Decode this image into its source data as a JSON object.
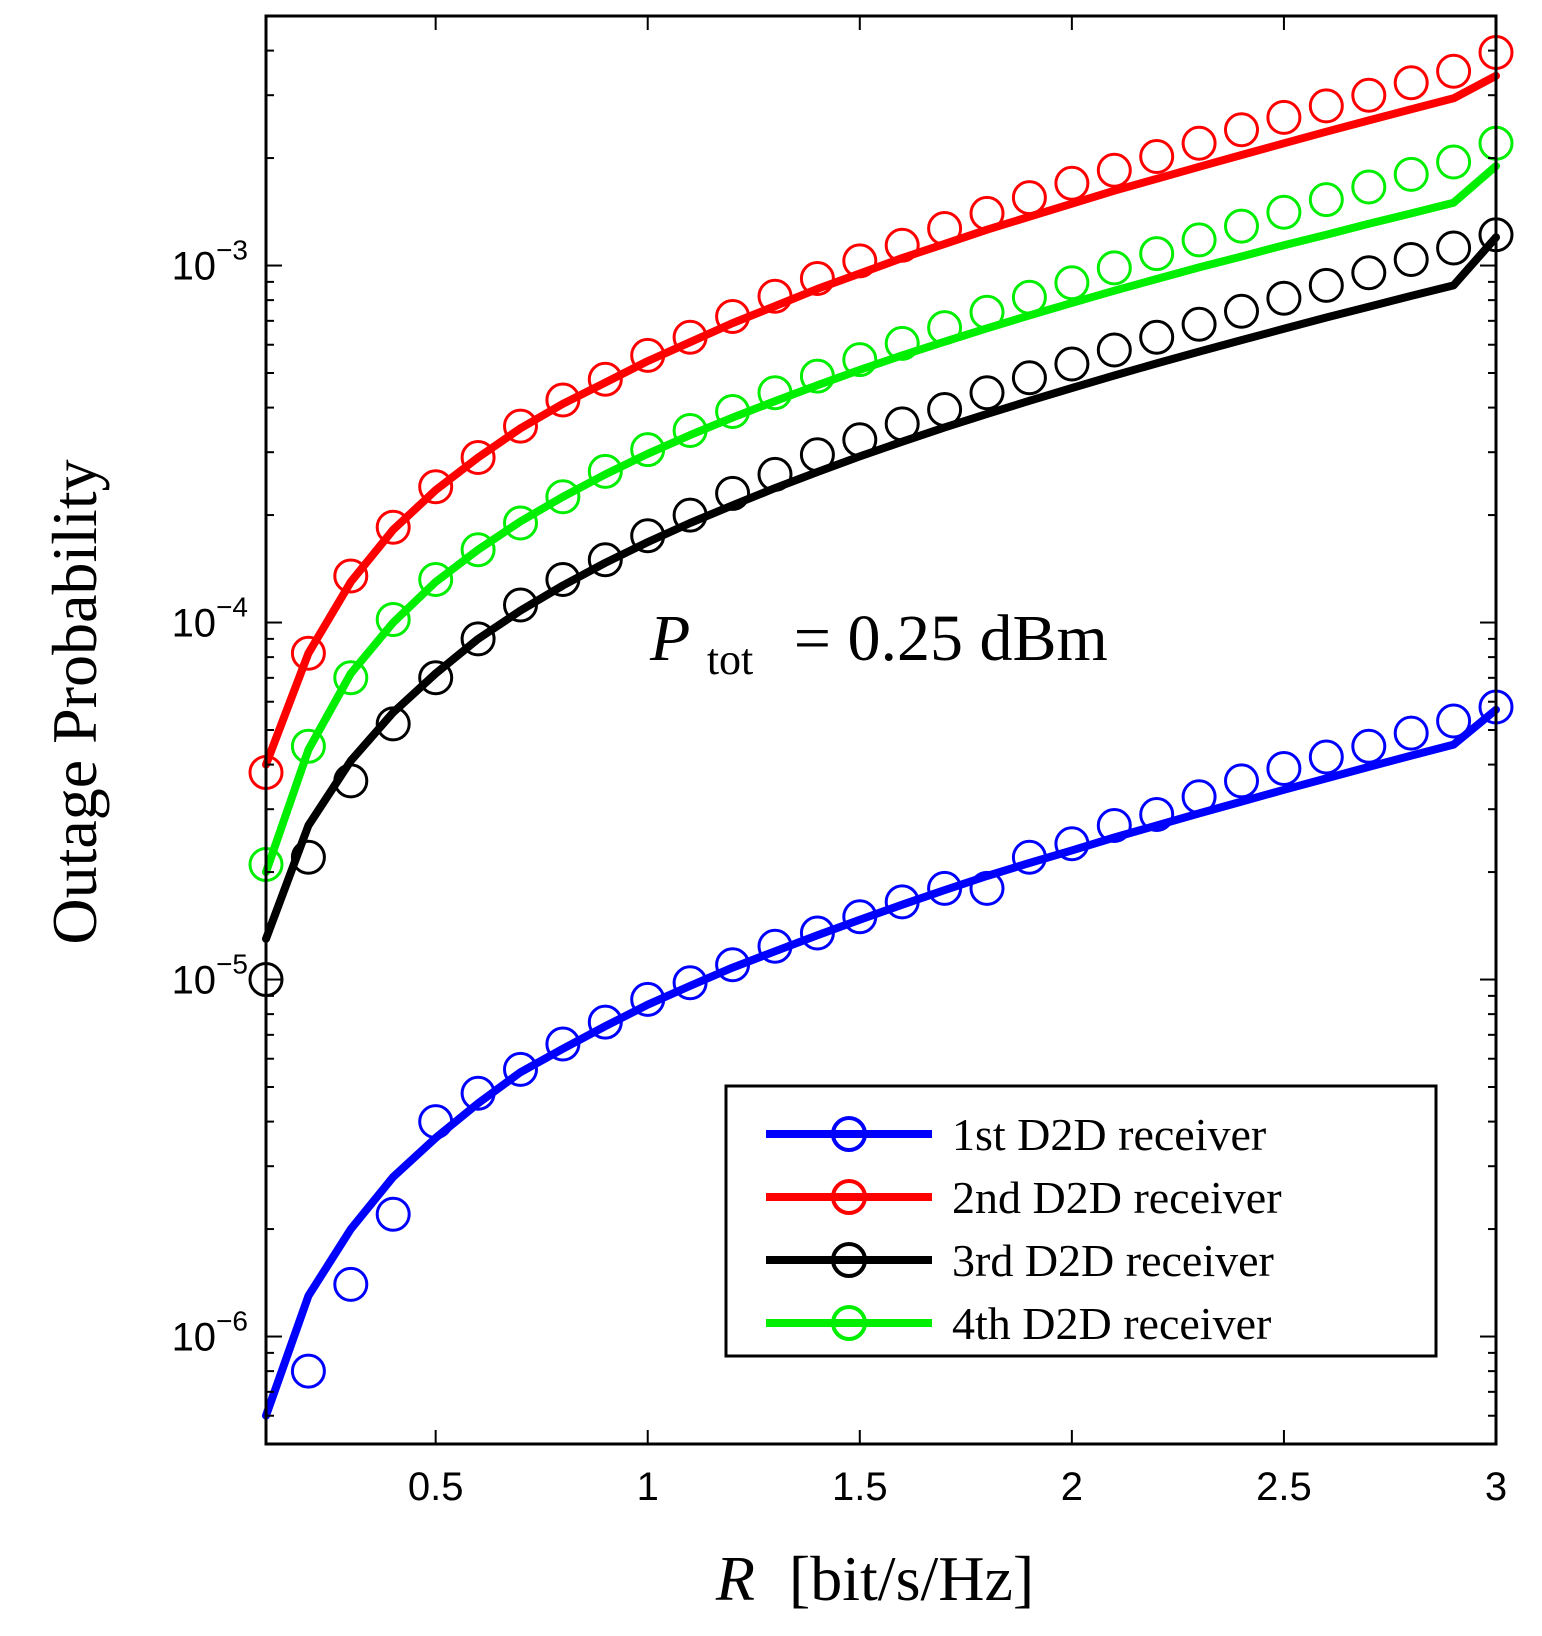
{
  "chart_data": {
    "type": "line",
    "title": "",
    "xlabel_var": "R",
    "xlabel_unit": "[bit/s/Hz]",
    "ylabel": "Outage Probability",
    "xlim": [
      0.1,
      3
    ],
    "ylim": [
      5e-07,
      0.005
    ],
    "yscale": "log",
    "grid": false,
    "legend_position": "bottom-right",
    "x_ticks": [
      0.5,
      1,
      1.5,
      2,
      2.5,
      3
    ],
    "x_tick_labels": [
      "0.5",
      "1",
      "1.5",
      "2",
      "2.5",
      "3"
    ],
    "y_ticks": [
      1e-06,
      1e-05,
      0.0001,
      0.001
    ],
    "y_tick_labels": [
      {
        "base": "10",
        "exp": "−6"
      },
      {
        "base": "10",
        "exp": "−5"
      },
      {
        "base": "10",
        "exp": "−4"
      },
      {
        "base": "10",
        "exp": "−3"
      }
    ],
    "annotation": {
      "var": "P",
      "sub": "tot",
      "rest": "= 0.25 dBm"
    },
    "x": [
      0.1,
      0.2,
      0.3,
      0.4,
      0.5,
      0.6,
      0.7,
      0.8,
      0.9,
      1.0,
      1.1,
      1.2,
      1.3,
      1.4,
      1.5,
      1.6,
      1.7,
      1.8,
      1.9,
      2.0,
      2.1,
      2.2,
      2.3,
      2.4,
      2.5,
      2.6,
      2.7,
      2.8,
      2.9,
      3.0
    ],
    "series": [
      {
        "name": "1st D2D receiver",
        "color": "#0000ff",
        "line": [
          6e-07,
          1.3e-06,
          2e-06,
          2.8e-06,
          3.6e-06,
          4.5e-06,
          5.5e-06,
          6.4e-06,
          7.4e-06,
          8.5e-06,
          9.6e-06,
          1.08e-05,
          1.2e-05,
          1.33e-05,
          1.47e-05,
          1.62e-05,
          1.78e-05,
          1.95e-05,
          2.12e-05,
          2.3e-05,
          2.5e-05,
          2.7e-05,
          2.92e-05,
          3.15e-05,
          3.4e-05,
          3.66e-05,
          3.94e-05,
          4.24e-05,
          4.55e-05,
          5.7e-05
        ],
        "markers": [
          null,
          8e-07,
          1.4e-06,
          2.2e-06,
          4e-06,
          4.8e-06,
          5.6e-06,
          6.6e-06,
          7.6e-06,
          8.8e-06,
          9.8e-06,
          1.1e-05,
          1.24e-05,
          1.35e-05,
          1.5e-05,
          1.65e-05,
          1.8e-05,
          1.8e-05,
          2.2e-05,
          2.4e-05,
          2.7e-05,
          2.9e-05,
          3.25e-05,
          3.6e-05,
          3.9e-05,
          4.2e-05,
          4.5e-05,
          4.9e-05,
          5.3e-05,
          5.8e-05
        ]
      },
      {
        "name": "2nd D2D receiver",
        "color": "#ff0000",
        "line": [
          4e-05,
          8.2e-05,
          0.00013,
          0.000182,
          0.000235,
          0.00029,
          0.00035,
          0.00041,
          0.00047,
          0.00054,
          0.00061,
          0.00069,
          0.00077,
          0.00086,
          0.00095,
          0.00105,
          0.00115,
          0.00126,
          0.00137,
          0.00149,
          0.00162,
          0.00175,
          0.00189,
          0.00204,
          0.0022,
          0.00237,
          0.00255,
          0.00274,
          0.00294,
          0.0034
        ],
        "markers": [
          3.8e-05,
          8.2e-05,
          0.000135,
          0.000185,
          0.00024,
          0.00029,
          0.000355,
          0.00042,
          0.00048,
          0.00056,
          0.00063,
          0.00072,
          0.00082,
          0.00092,
          0.00103,
          0.00114,
          0.00127,
          0.0014,
          0.00155,
          0.0017,
          0.00185,
          0.00202,
          0.0022,
          0.0024,
          0.0026,
          0.0028,
          0.003,
          0.00325,
          0.0035,
          0.00395
        ]
      },
      {
        "name": "3rd D2D receiver",
        "color": "#000000",
        "line": [
          1.3e-05,
          2.7e-05,
          4.1e-05,
          5.6e-05,
          7.2e-05,
          9e-05,
          0.000108,
          0.000127,
          0.000147,
          0.000168,
          0.00019,
          0.000213,
          0.000238,
          0.000264,
          0.000292,
          0.000321,
          0.000352,
          0.000384,
          0.000418,
          0.000454,
          0.000492,
          0.000532,
          0.000574,
          0.000618,
          0.000665,
          0.000715,
          0.000767,
          0.000822,
          0.00088,
          0.0012
        ],
        "markers": [
          1e-05,
          2.2e-05,
          3.6e-05,
          5.2e-05,
          7e-05,
          9e-05,
          0.000112,
          0.000132,
          0.00015,
          0.000175,
          0.0002,
          0.00023,
          0.00026,
          0.000295,
          0.000325,
          0.00036,
          0.000395,
          0.00044,
          0.000485,
          0.00053,
          0.00058,
          0.00063,
          0.000685,
          0.000745,
          0.00081,
          0.00088,
          0.000955,
          0.00104,
          0.00112,
          0.00122
        ]
      },
      {
        "name": "4th D2D receiver",
        "color": "#00ee00",
        "line": [
          2e-05,
          4.4e-05,
          7.2e-05,
          0.0001,
          0.00013,
          0.00016,
          0.000192,
          0.000225,
          0.00026,
          0.000297,
          0.000335,
          0.000375,
          0.000417,
          0.000462,
          0.00051,
          0.00056,
          0.000612,
          0.000667,
          0.000725,
          0.000786,
          0.00085,
          0.000917,
          0.000988,
          0.00106,
          0.00114,
          0.00122,
          0.00131,
          0.0014,
          0.0015,
          0.0019
        ],
        "markers": [
          2.1e-05,
          4.5e-05,
          7e-05,
          0.000102,
          0.000132,
          0.00016,
          0.00019,
          0.000225,
          0.000265,
          0.000305,
          0.000345,
          0.00039,
          0.00044,
          0.00049,
          0.000545,
          0.000605,
          0.00067,
          0.00074,
          0.000815,
          0.000895,
          0.000985,
          0.00108,
          0.00118,
          0.00129,
          0.00141,
          0.00153,
          0.00166,
          0.0018,
          0.00195,
          0.0022
        ]
      }
    ]
  }
}
